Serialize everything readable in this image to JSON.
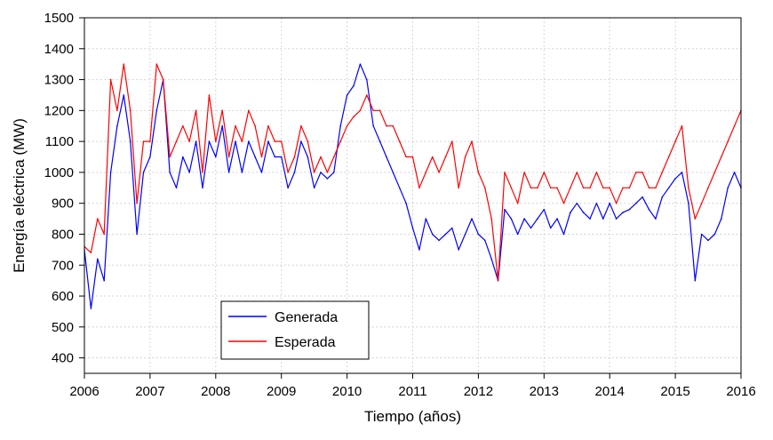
{
  "chart_data": {
    "type": "line",
    "xlabel": "Tiempo (años)",
    "ylabel": "Energía eléctrica (MW)",
    "xlim": [
      2006,
      2016
    ],
    "ylim": [
      350,
      1500
    ],
    "x_ticks": [
      2006,
      2007,
      2008,
      2009,
      2010,
      2011,
      2012,
      2013,
      2014,
      2015,
      2016
    ],
    "y_ticks": [
      400,
      500,
      600,
      700,
      800,
      900,
      1000,
      1100,
      1200,
      1300,
      1400,
      1500
    ],
    "grid": true,
    "legend_position": "bottom-left",
    "series": [
      {
        "name": "Generada",
        "color": "#0000ff",
        "x": [
          2006.0,
          2006.1,
          2006.2,
          2006.3,
          2006.4,
          2006.5,
          2006.6,
          2006.7,
          2006.8,
          2006.9,
          2007.0,
          2007.1,
          2007.2,
          2007.3,
          2007.4,
          2007.5,
          2007.6,
          2007.7,
          2007.8,
          2007.9,
          2008.0,
          2008.1,
          2008.2,
          2008.3,
          2008.4,
          2008.5,
          2008.6,
          2008.7,
          2008.8,
          2008.9,
          2009.0,
          2009.1,
          2009.2,
          2009.3,
          2009.4,
          2009.5,
          2009.6,
          2009.7,
          2009.8,
          2009.9,
          2010.0,
          2010.1,
          2010.2,
          2010.3,
          2010.4,
          2010.5,
          2010.6,
          2010.7,
          2010.8,
          2010.9,
          2011.0,
          2011.1,
          2011.2,
          2011.3,
          2011.4,
          2011.5,
          2011.6,
          2011.7,
          2011.8,
          2011.9,
          2012.0,
          2012.1,
          2012.2,
          2012.3,
          2012.4,
          2012.5,
          2012.6,
          2012.7,
          2012.8,
          2012.9,
          2013.0,
          2013.1,
          2013.2,
          2013.3,
          2013.4,
          2013.5,
          2013.6,
          2013.7,
          2013.8,
          2013.9,
          2014.0,
          2014.1,
          2014.2,
          2014.3,
          2014.4,
          2014.5,
          2014.6,
          2014.7,
          2014.8,
          2014.9,
          2015.0,
          2015.1,
          2015.2,
          2015.3,
          2015.4,
          2015.5,
          2015.6,
          2015.7,
          2015.8,
          2015.9,
          2016.0
        ],
        "y": [
          750,
          560,
          720,
          650,
          1000,
          1150,
          1250,
          1100,
          800,
          1000,
          1050,
          1200,
          1300,
          1000,
          950,
          1050,
          1000,
          1100,
          950,
          1100,
          1050,
          1150,
          1000,
          1100,
          1000,
          1100,
          1050,
          1000,
          1100,
          1050,
          1050,
          950,
          1000,
          1100,
          1050,
          950,
          1000,
          980,
          1000,
          1150,
          1250,
          1280,
          1350,
          1300,
          1150,
          1100,
          1050,
          1000,
          950,
          900,
          820,
          750,
          850,
          800,
          780,
          800,
          820,
          750,
          800,
          850,
          800,
          780,
          720,
          650,
          880,
          850,
          800,
          850,
          820,
          850,
          880,
          820,
          850,
          800,
          870,
          900,
          870,
          850,
          900,
          850,
          900,
          850,
          870,
          880,
          900,
          920,
          880,
          850,
          920,
          950,
          980,
          1000,
          900,
          650,
          800,
          780,
          800,
          850,
          950,
          1000,
          950
        ]
      },
      {
        "name": "Esperada",
        "color": "#ff0000",
        "x": [
          2006.0,
          2006.1,
          2006.2,
          2006.3,
          2006.4,
          2006.5,
          2006.6,
          2006.7,
          2006.8,
          2006.9,
          2007.0,
          2007.1,
          2007.2,
          2007.3,
          2007.4,
          2007.5,
          2007.6,
          2007.7,
          2007.8,
          2007.9,
          2008.0,
          2008.1,
          2008.2,
          2008.3,
          2008.4,
          2008.5,
          2008.6,
          2008.7,
          2008.8,
          2008.9,
          2009.0,
          2009.1,
          2009.2,
          2009.3,
          2009.4,
          2009.5,
          2009.6,
          2009.7,
          2009.8,
          2009.9,
          2010.0,
          2010.1,
          2010.2,
          2010.3,
          2010.4,
          2010.5,
          2010.6,
          2010.7,
          2010.8,
          2010.9,
          2011.0,
          2011.1,
          2011.2,
          2011.3,
          2011.4,
          2011.5,
          2011.6,
          2011.7,
          2011.8,
          2011.9,
          2012.0,
          2012.1,
          2012.2,
          2012.3,
          2012.4,
          2012.5,
          2012.6,
          2012.7,
          2012.8,
          2012.9,
          2013.0,
          2013.1,
          2013.2,
          2013.3,
          2013.4,
          2013.5,
          2013.6,
          2013.7,
          2013.8,
          2013.9,
          2014.0,
          2014.1,
          2014.2,
          2014.3,
          2014.4,
          2014.5,
          2014.6,
          2014.7,
          2014.8,
          2014.9,
          2015.0,
          2015.1,
          2015.2,
          2015.3,
          2015.4,
          2015.5,
          2015.6,
          2015.7,
          2015.8,
          2015.9,
          2016.0
        ],
        "y": [
          760,
          740,
          850,
          800,
          1300,
          1200,
          1350,
          1200,
          900,
          1100,
          1100,
          1350,
          1300,
          1050,
          1100,
          1150,
          1100,
          1200,
          1000,
          1250,
          1100,
          1200,
          1050,
          1150,
          1100,
          1200,
          1150,
          1050,
          1150,
          1100,
          1100,
          1000,
          1050,
          1150,
          1100,
          1000,
          1050,
          1000,
          1050,
          1100,
          1150,
          1180,
          1200,
          1250,
          1200,
          1200,
          1150,
          1150,
          1100,
          1050,
          1050,
          950,
          1000,
          1050,
          1000,
          1050,
          1100,
          950,
          1050,
          1100,
          1000,
          950,
          850,
          650,
          1000,
          950,
          900,
          1000,
          950,
          950,
          1000,
          950,
          950,
          900,
          950,
          1000,
          950,
          950,
          1000,
          950,
          950,
          900,
          950,
          950,
          1000,
          1000,
          950,
          950,
          1000,
          1050,
          1100,
          1150,
          950,
          850,
          900,
          950,
          1000,
          1050,
          1100,
          1150,
          1200
        ]
      }
    ]
  }
}
